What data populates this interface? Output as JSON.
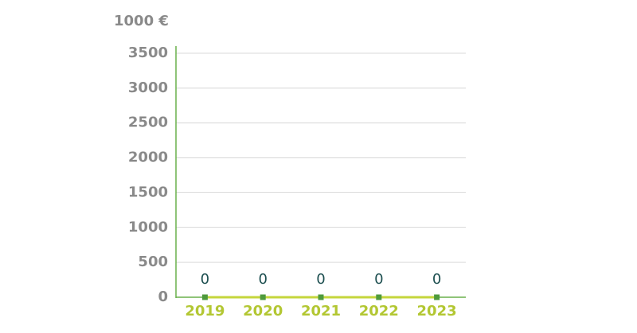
{
  "chart_data": {
    "type": "line",
    "y_label": "1000 €",
    "categories": [
      "2019",
      "2020",
      "2021",
      "2022",
      "2023"
    ],
    "values": [
      0,
      0,
      0,
      0,
      0
    ],
    "line_color": "#c5d63c",
    "marker_color": "#4e9a3c",
    "axis_color": "#6ab04c",
    "ylim": [
      0,
      3500
    ],
    "yticks": [
      0,
      500,
      1000,
      1500,
      2000,
      2500,
      3000,
      3500
    ],
    "grid": true
  }
}
